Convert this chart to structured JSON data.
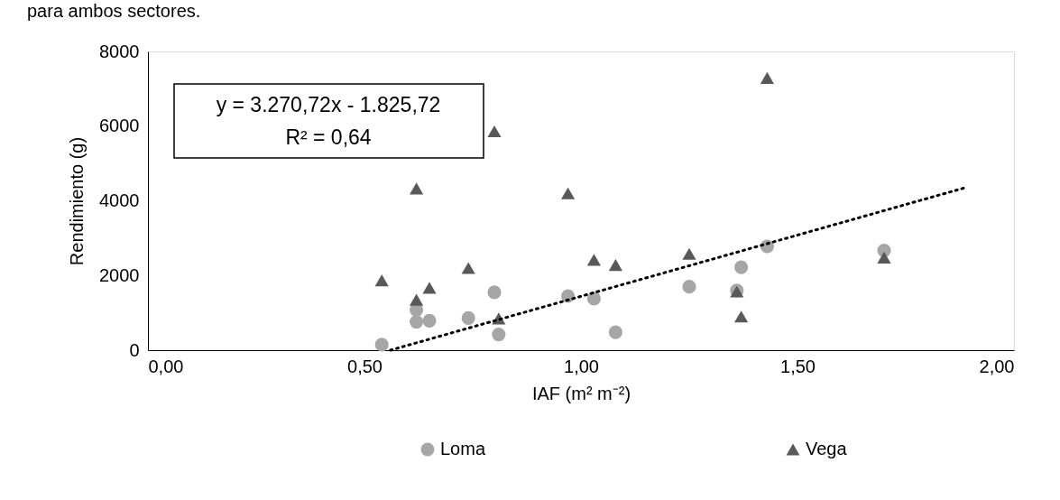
{
  "chart_data": {
    "type": "scatter",
    "xlabel": "IAF (m² m⁻²)",
    "ylabel": "Rendimiento (g)",
    "xlim": [
      0,
      2
    ],
    "xticks": [
      {
        "value": 0,
        "label": "0,00"
      },
      {
        "value": 0.5,
        "label": "0,50"
      },
      {
        "value": 1,
        "label": "1,00"
      },
      {
        "value": 1.5,
        "label": "1,50"
      },
      {
        "value": 2,
        "label": "2,00"
      }
    ],
    "ylim": [
      0,
      8000
    ],
    "yticks": [
      0,
      2000,
      4000,
      6000,
      8000
    ],
    "grid": false,
    "legend": "bottom",
    "annotations": [
      "para ambos sectores.",
      "y = 3.270,72x - 1.825,72",
      "R² = 0,64"
    ],
    "series": [
      {
        "name": "Loma",
        "marker": "circle",
        "color": "#a6a6a6",
        "x": [
          0.54,
          0.62,
          0.62,
          0.65,
          0.74,
          0.8,
          0.81,
          0.97,
          1.03,
          1.08,
          1.25,
          1.36,
          1.37,
          1.43,
          1.7
        ],
        "values": [
          150,
          1080,
          760,
          790,
          860,
          1550,
          420,
          1450,
          1380,
          480,
          1700,
          1600,
          2220,
          2780,
          2670
        ]
      },
      {
        "name": "Vega",
        "marker": "triangle",
        "color": "#595959",
        "x": [
          0.54,
          0.62,
          0.62,
          0.65,
          0.74,
          0.8,
          0.81,
          0.97,
          1.03,
          1.08,
          1.25,
          1.36,
          1.37,
          1.43,
          1.7
        ],
        "values": [
          1870,
          4330,
          1350,
          1670,
          2200,
          5860,
          850,
          4200,
          2420,
          2280,
          2580,
          1570,
          900,
          7290,
          2480
        ]
      },
      {
        "type": "line",
        "line_style": "dotted",
        "marker": "none",
        "color": "#000000",
        "x": [
          0.56,
          1.89
        ],
        "values": [
          0,
          4360
        ]
      }
    ]
  }
}
